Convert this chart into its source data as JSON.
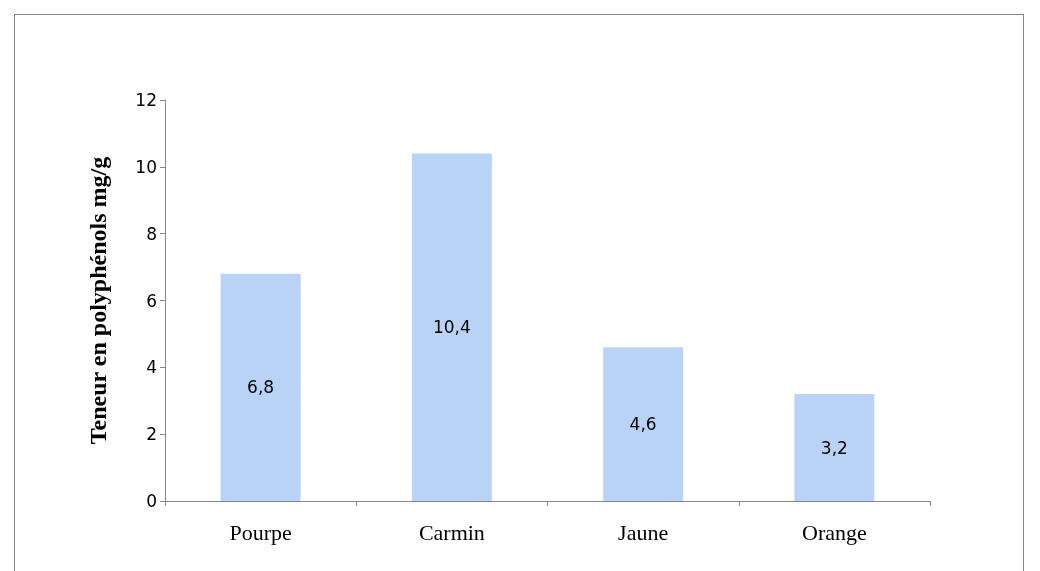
{
  "chart_data": {
    "type": "bar",
    "ylabel": "Teneur en polyphénols mg/g",
    "categories": [
      "Pourpe",
      "Carmin",
      "Jaune",
      "Orange"
    ],
    "values": [
      6.8,
      10.4,
      4.6,
      3.2
    ],
    "value_labels": [
      "6,8",
      "10,4",
      "4,6",
      "3,2"
    ],
    "color": "#b9d3f7",
    "ylim": [
      0,
      12
    ],
    "yticks": [
      0,
      2,
      4,
      6,
      8,
      10,
      12
    ],
    "grid": false
  }
}
